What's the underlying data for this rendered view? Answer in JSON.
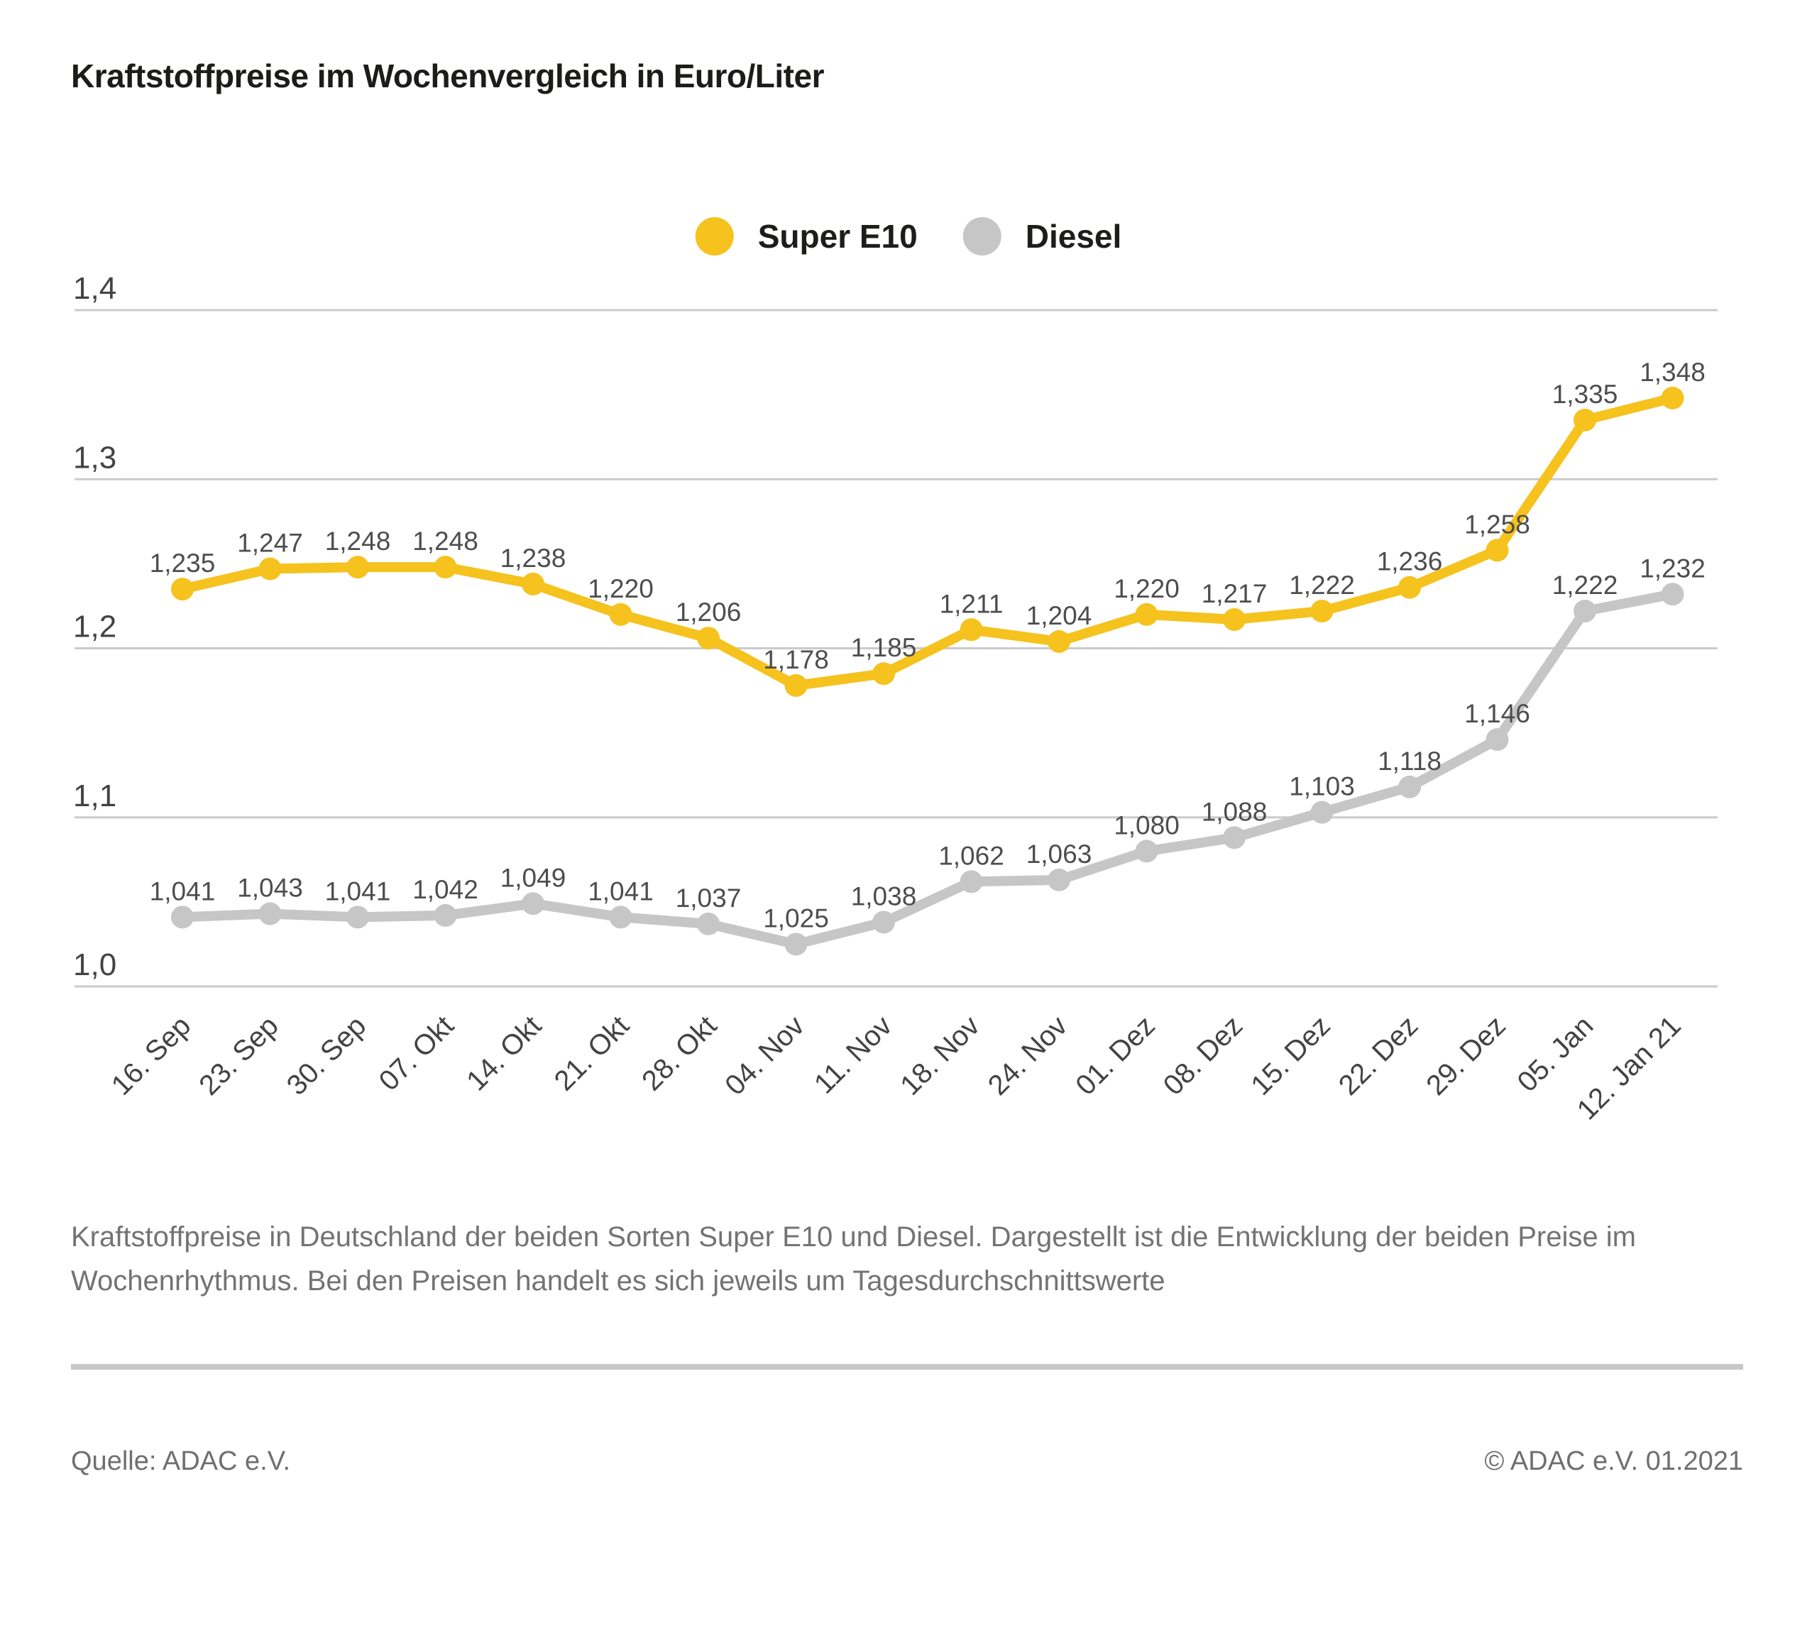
{
  "title": "Kraftstoffpreise im Wochenvergleich in Euro/Liter",
  "chart_data": {
    "type": "line",
    "categories": [
      "16. Sep",
      "23. Sep",
      "30. Sep",
      "07. Okt",
      "14. Okt",
      "21. Okt",
      "28. Okt",
      "04. Nov",
      "11. Nov",
      "18. Nov",
      "24. Nov",
      "01. Dez",
      "08. Dez",
      "15. Dez",
      "22. Dez",
      "29. Dez",
      "05. Jan",
      "12. Jan 21"
    ],
    "series": [
      {
        "name": "Super E10",
        "color": "#F5C21E",
        "values": [
          1.235,
          1.247,
          1.248,
          1.248,
          1.238,
          1.22,
          1.206,
          1.178,
          1.185,
          1.211,
          1.204,
          1.22,
          1.217,
          1.222,
          1.236,
          1.258,
          1.335,
          1.348
        ],
        "labels": [
          "1,235",
          "1,247",
          "1,248",
          "1,248",
          "1,238",
          "1,220",
          "1,206",
          "1,178",
          "1,185",
          "1,211",
          "1,204",
          "1,220",
          "1,217",
          "1,222",
          "1,236",
          "1,258",
          "1,335",
          "1,348"
        ]
      },
      {
        "name": "Diesel",
        "color": "#C6C6C6",
        "values": [
          1.041,
          1.043,
          1.041,
          1.042,
          1.049,
          1.041,
          1.037,
          1.025,
          1.038,
          1.062,
          1.063,
          1.08,
          1.088,
          1.103,
          1.118,
          1.146,
          1.222,
          1.232
        ],
        "labels": [
          "1,041",
          "1,043",
          "1,041",
          "1,042",
          "1,049",
          "1,041",
          "1,037",
          "1,025",
          "1,038",
          "1,062",
          "1,063",
          "1,080",
          "1,088",
          "1,103",
          "1,118",
          "1,146",
          "1,222",
          "1,232"
        ]
      }
    ],
    "ylim": [
      1.0,
      1.4
    ],
    "yticks": {
      "values": [
        1.4,
        1.3,
        1.2,
        1.1,
        1.0
      ],
      "labels": [
        "1,4",
        "1,3",
        "1,2",
        "1,1",
        "1,0"
      ]
    },
    "grid": true,
    "legend_position": "top-center",
    "xlabel": "",
    "ylabel": ""
  },
  "caption": {
    "line1": "Kraftstoffpreise in Deutschland der beiden Sorten Super E10 und Diesel. Dargestellt ist die Entwicklung der beiden Preise im",
    "line2": "Wochenrhythmus. Bei den Preisen handelt es sich jeweils um Tagesdurchschnittswerte"
  },
  "footer": {
    "source": "Quelle: ADAC e.V.",
    "copyright": "© ADAC e.V. 01.2021"
  }
}
